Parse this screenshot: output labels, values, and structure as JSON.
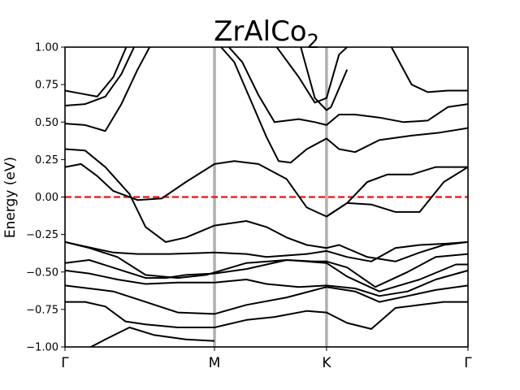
{
  "chart_data": {
    "type": "line",
    "title_main": "ZrAlCo",
    "title_sub": "2",
    "ylabel": "Energy (eV)",
    "xlabel": "",
    "ylim": [
      -1.0,
      1.0
    ],
    "yticks": [
      -1.0,
      -0.75,
      -0.5,
      -0.25,
      0.0,
      0.25,
      0.5,
      0.75,
      1.0
    ],
    "ytick_labels": [
      "−1.00",
      "−0.75",
      "−0.50",
      "−0.25",
      "0.00",
      "0.25",
      "0.50",
      "0.75",
      "1.00"
    ],
    "xlim": [
      0,
      1
    ],
    "high_symmetry_points": [
      {
        "label": "Γ",
        "x": 0.0
      },
      {
        "label": "M",
        "x": 0.371
      },
      {
        "label": "K",
        "x": 0.649
      },
      {
        "label": "Γ",
        "x": 1.0
      }
    ],
    "fermi_level": 0.0,
    "grid": false,
    "colors": {
      "bands": "#000000",
      "fermi": "#ee1111",
      "kpath": "#b0b0b0"
    },
    "series": [
      {
        "x": [
          0.0,
          0.06,
          0.13,
          0.2,
          0.28,
          0.35,
          0.45,
          0.55,
          0.6,
          0.649,
          0.7,
          0.78,
          0.88,
          0.97,
          1.0
        ],
        "values": [
          -0.3,
          -0.34,
          -0.4,
          -0.52,
          -0.54,
          -0.52,
          -0.44,
          -0.42,
          -0.43,
          -0.44,
          -0.53,
          -0.63,
          -0.55,
          -0.45,
          -0.45
        ]
      },
      {
        "x": [
          0.0,
          0.06,
          0.13,
          0.2,
          0.25,
          0.3,
          0.371,
          0.45,
          0.55,
          0.62,
          0.649,
          0.7,
          0.77,
          0.85,
          0.92,
          1.0
        ],
        "values": [
          -0.44,
          -0.42,
          -0.48,
          -0.54,
          -0.54,
          -0.52,
          -0.51,
          -0.48,
          -0.42,
          -0.43,
          -0.43,
          -0.47,
          -0.6,
          -0.5,
          -0.4,
          -0.38
        ]
      },
      {
        "x": [
          0.0,
          0.06,
          0.13,
          0.2,
          0.28,
          0.371,
          0.45,
          0.5,
          0.58,
          0.649,
          0.72,
          0.78,
          0.85,
          0.92,
          1.0
        ],
        "values": [
          -0.49,
          -0.51,
          -0.55,
          -0.58,
          -0.57,
          -0.57,
          -0.55,
          -0.58,
          -0.6,
          -0.59,
          -0.61,
          -0.66,
          -0.63,
          -0.55,
          -0.49
        ]
      },
      {
        "x": [
          0.0,
          0.06,
          0.12,
          0.2,
          0.28,
          0.371,
          0.45,
          0.55,
          0.649,
          0.72,
          0.78,
          0.85,
          0.92,
          1.0
        ],
        "values": [
          -0.59,
          -0.61,
          -0.63,
          -0.7,
          -0.77,
          -0.78,
          -0.72,
          -0.67,
          -0.6,
          -0.63,
          -0.7,
          -0.66,
          -0.62,
          -0.59
        ]
      },
      {
        "x": [
          0.0,
          0.05,
          0.1,
          0.15,
          0.2,
          0.28,
          0.371,
          0.45,
          0.52,
          0.6,
          0.649,
          0.7,
          0.76,
          0.82,
          0.88,
          0.94,
          1.0
        ],
        "values": [
          -0.7,
          -0.7,
          -0.73,
          -0.83,
          -0.85,
          -0.87,
          -0.87,
          -0.82,
          -0.8,
          -0.76,
          -0.77,
          -0.84,
          -0.88,
          -0.74,
          -0.72,
          -0.7,
          -0.7
        ]
      },
      {
        "x": [
          0.0,
          0.05,
          0.12,
          0.18,
          0.26,
          0.371,
          0.45,
          0.5,
          0.6,
          0.649,
          0.7,
          0.76,
          0.82,
          0.88,
          0.95,
          1.0
        ],
        "values": [
          -0.3,
          -0.33,
          -0.37,
          -0.38,
          -0.38,
          -0.37,
          -0.38,
          -0.4,
          -0.38,
          -0.36,
          -0.4,
          -0.43,
          -0.34,
          -0.32,
          -0.31,
          -0.3
        ]
      },
      {
        "x": [
          0.0,
          0.05,
          0.1,
          0.16,
          0.2,
          0.25,
          0.3,
          0.371
        ],
        "values": [
          0.32,
          0.31,
          0.2,
          0.02,
          -0.2,
          -0.3,
          -0.27,
          -0.19
        ]
      },
      {
        "x": [
          0.371,
          0.45,
          0.5,
          0.55,
          0.6,
          0.649,
          0.68,
          0.75,
          0.82,
          0.88,
          0.94,
          1.0
        ],
        "values": [
          -0.19,
          -0.16,
          -0.2,
          -0.27,
          -0.32,
          -0.34,
          -0.32,
          -0.4,
          -0.43,
          -0.37,
          -0.32,
          -0.3
        ]
      },
      {
        "x": [
          0.0,
          0.04,
          0.08,
          0.12,
          0.18,
          0.24,
          0.3,
          0.371,
          0.42,
          0.48,
          0.55,
          0.6,
          0.649,
          0.7,
          0.75,
          0.8,
          0.86,
          0.92,
          1.0
        ],
        "values": [
          0.2,
          0.22,
          0.14,
          0.04,
          -0.02,
          -0.01,
          0.1,
          0.22,
          0.24,
          0.22,
          0.12,
          -0.07,
          -0.13,
          -0.04,
          0.1,
          0.15,
          0.15,
          0.2,
          0.2
        ]
      },
      {
        "x": [
          0.649,
          0.7,
          0.76,
          0.82,
          0.88,
          0.94,
          1.0
        ],
        "values": [
          -0.13,
          -0.04,
          -0.05,
          -0.1,
          -0.1,
          0.1,
          0.2
        ]
      },
      {
        "x": [
          0.371,
          0.42,
          0.46,
          0.5,
          0.53,
          0.56,
          0.6,
          0.649,
          0.68,
          0.72,
          0.78,
          0.86,
          0.93,
          1.0
        ],
        "values": [
          1.05,
          0.9,
          0.65,
          0.4,
          0.24,
          0.23,
          0.32,
          0.39,
          0.32,
          0.3,
          0.38,
          0.41,
          0.43,
          0.46
        ]
      },
      {
        "x": [
          0.0,
          0.05,
          0.1,
          0.14,
          0.18,
          0.22
        ],
        "values": [
          0.49,
          0.48,
          0.44,
          0.62,
          0.85,
          1.05
        ]
      },
      {
        "x": [
          0.0,
          0.05,
          0.1,
          0.14,
          0.18
        ],
        "values": [
          0.61,
          0.62,
          0.67,
          0.82,
          1.05
        ]
      },
      {
        "x": [
          0.0,
          0.04,
          0.08,
          0.12,
          0.16
        ],
        "values": [
          0.71,
          0.69,
          0.67,
          0.8,
          1.05
        ]
      },
      {
        "x": [
          0.32,
          0.4,
          0.44,
          0.48,
          0.52,
          0.58,
          0.62,
          0.649,
          0.68,
          0.72
        ],
        "values": [
          1.05,
          1.02,
          0.9,
          0.68,
          0.5,
          0.52,
          0.5,
          0.48,
          0.55,
          0.55
        ]
      },
      {
        "x": [
          0.72,
          0.78,
          0.84,
          0.9,
          0.95,
          1.0
        ],
        "values": [
          0.55,
          0.53,
          0.5,
          0.51,
          0.6,
          0.62
        ]
      },
      {
        "x": [
          0.46,
          0.52,
          0.58,
          0.62,
          0.649,
          0.68,
          0.72
        ],
        "values": [
          1.05,
          1.02,
          0.8,
          0.63,
          0.66,
          0.95,
          1.05
        ]
      },
      {
        "x": [
          0.58,
          0.62,
          0.649,
          0.66,
          0.7
        ],
        "values": [
          1.05,
          0.66,
          0.58,
          0.6,
          0.85
        ]
      },
      {
        "x": [
          0.8,
          0.86,
          0.9,
          0.95,
          1.0
        ],
        "values": [
          1.05,
          0.75,
          0.7,
          0.71,
          0.71
        ]
      },
      {
        "x": [
          0.0,
          0.05,
          0.1,
          0.16,
          0.22,
          0.3,
          0.371
        ],
        "values": [
          -1.05,
          -1.02,
          -0.95,
          -0.87,
          -0.92,
          -0.95,
          -0.96
        ]
      }
    ]
  }
}
